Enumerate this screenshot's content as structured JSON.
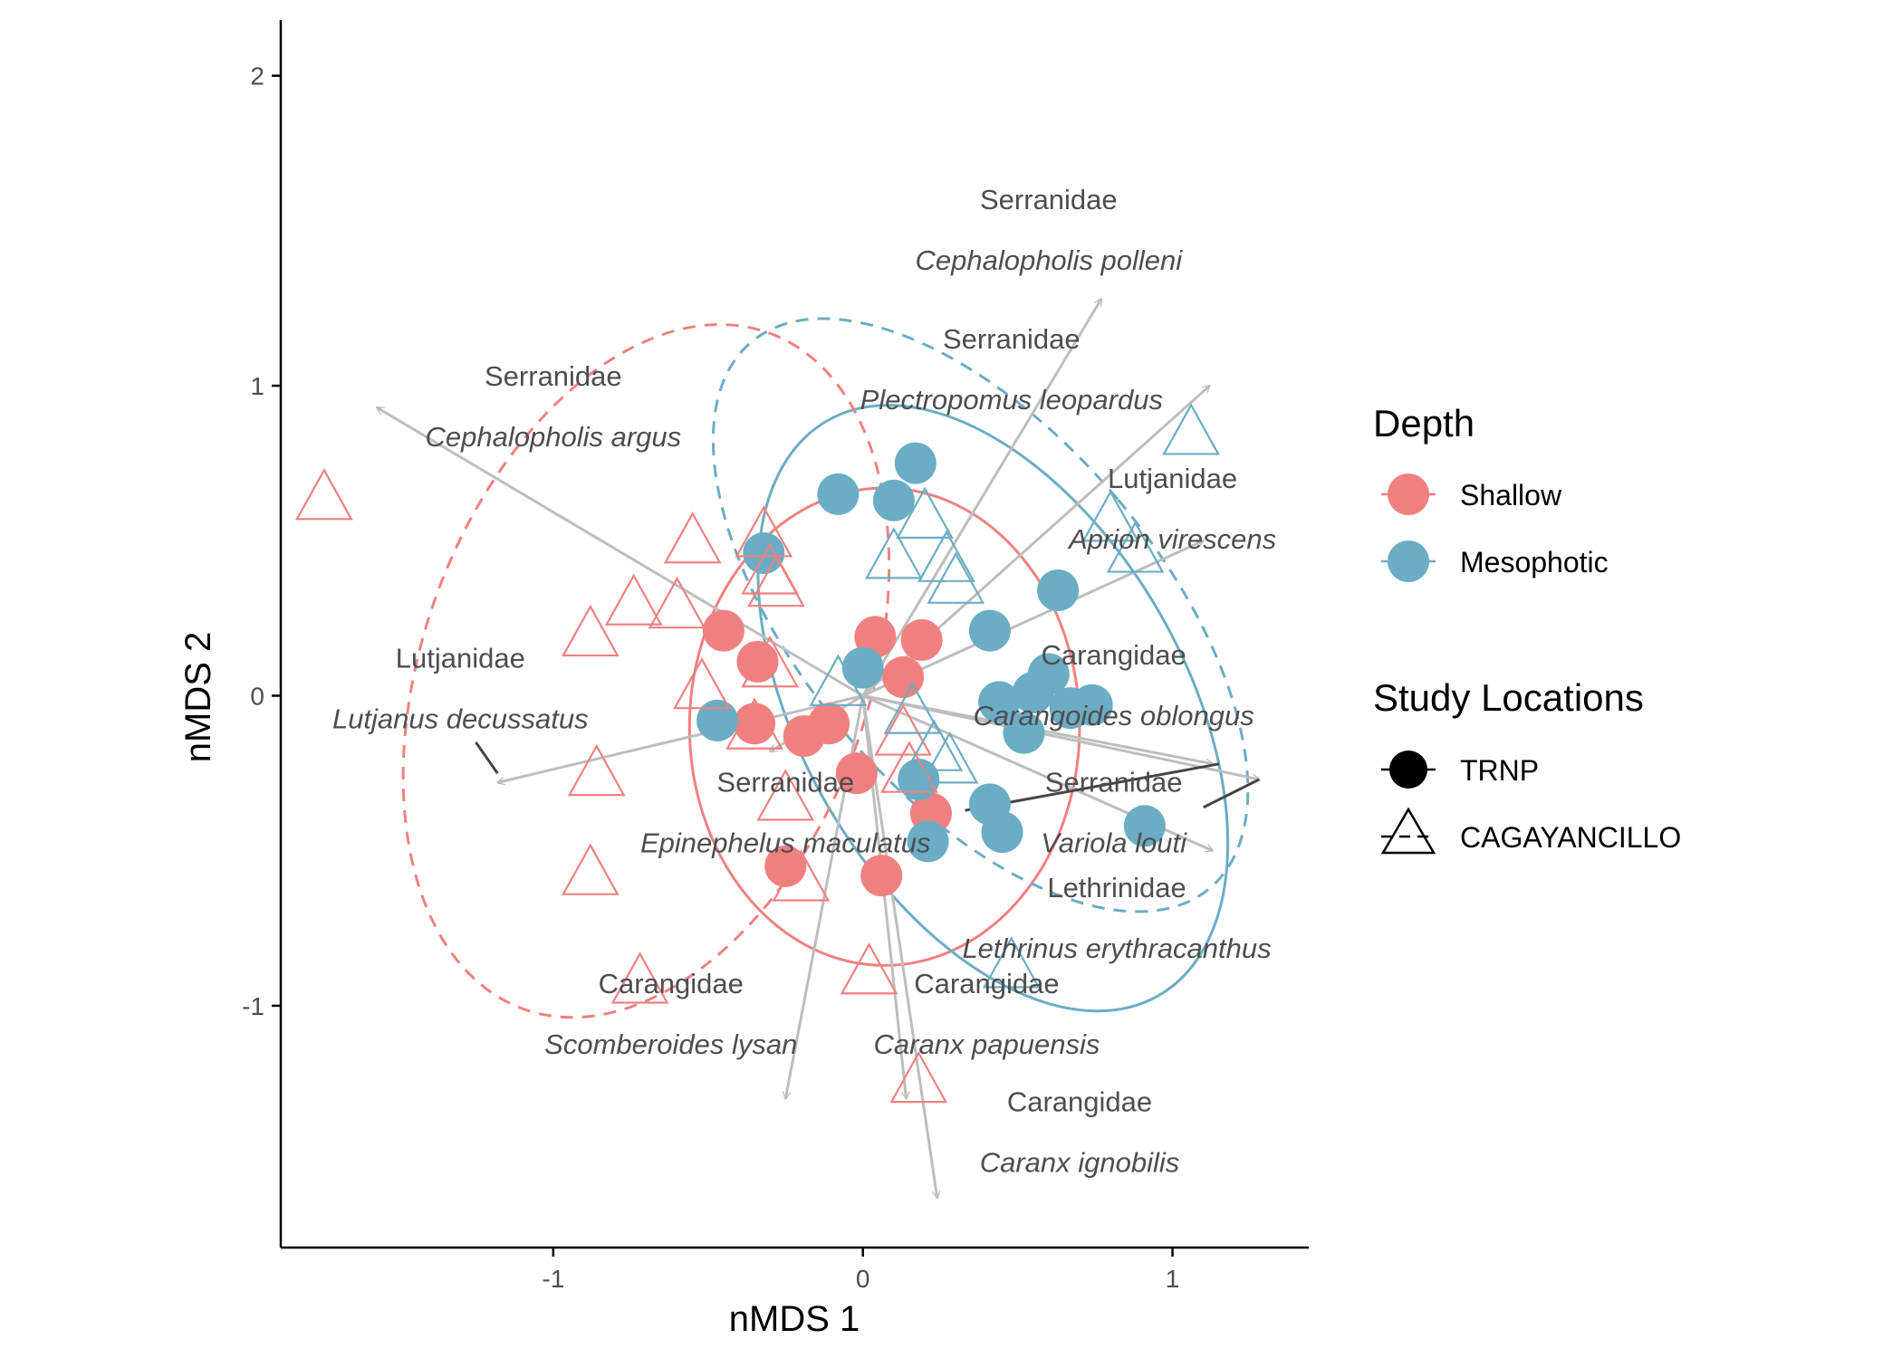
{
  "chart_data": {
    "type": "scatter",
    "xlabel": "nMDS 1",
    "ylabel": "nMDS 2",
    "xlim": [
      -1.88,
      1.44
    ],
    "ylim": [
      -1.78,
      2.18
    ],
    "x_ticks": [
      -1,
      0,
      1
    ],
    "y_ticks": [
      -1,
      0,
      1,
      2
    ],
    "grid": false,
    "colors": {
      "Shallow": "#F08080",
      "Mesophotic": "#6AADC4",
      "arrow": "#BDBDBD",
      "segment": "#444444"
    },
    "legend_depth": {
      "title": "Depth",
      "items": [
        {
          "label": "Shallow",
          "color": "#F08080"
        },
        {
          "label": "Mesophotic",
          "color": "#6AADC4"
        }
      ]
    },
    "legend_location": {
      "title": "Study Locations",
      "items": [
        {
          "label": "TRNP",
          "shape": "circle",
          "line": "solid"
        },
        {
          "label": "CAGAYANCILLO",
          "shape": "triangle",
          "line": "dashed"
        }
      ]
    },
    "points": [
      {
        "x": -0.45,
        "y": 0.21,
        "depth": "Shallow",
        "location": "TRNP"
      },
      {
        "x": -0.34,
        "y": 0.11,
        "depth": "Shallow",
        "location": "TRNP"
      },
      {
        "x": -0.35,
        "y": -0.09,
        "depth": "Shallow",
        "location": "TRNP"
      },
      {
        "x": -0.19,
        "y": -0.13,
        "depth": "Shallow",
        "location": "TRNP"
      },
      {
        "x": -0.11,
        "y": -0.09,
        "depth": "Shallow",
        "location": "TRNP"
      },
      {
        "x": -0.02,
        "y": -0.25,
        "depth": "Shallow",
        "location": "TRNP"
      },
      {
        "x": 0.04,
        "y": 0.19,
        "depth": "Shallow",
        "location": "TRNP"
      },
      {
        "x": 0.19,
        "y": 0.18,
        "depth": "Shallow",
        "location": "TRNP"
      },
      {
        "x": 0.13,
        "y": 0.06,
        "depth": "Shallow",
        "location": "TRNP"
      },
      {
        "x": 0.22,
        "y": -0.38,
        "depth": "Shallow",
        "location": "TRNP"
      },
      {
        "x": -0.25,
        "y": -0.55,
        "depth": "Shallow",
        "location": "TRNP"
      },
      {
        "x": 0.06,
        "y": -0.58,
        "depth": "Shallow",
        "location": "TRNP"
      },
      {
        "x": -0.47,
        "y": -0.08,
        "depth": "Mesophotic",
        "location": "TRNP"
      },
      {
        "x": -0.32,
        "y": 0.46,
        "depth": "Mesophotic",
        "location": "TRNP"
      },
      {
        "x": -0.08,
        "y": 0.65,
        "depth": "Mesophotic",
        "location": "TRNP"
      },
      {
        "x": 0.1,
        "y": 0.63,
        "depth": "Mesophotic",
        "location": "TRNP"
      },
      {
        "x": 0.17,
        "y": 0.75,
        "depth": "Mesophotic",
        "location": "TRNP"
      },
      {
        "x": 0.0,
        "y": 0.09,
        "depth": "Mesophotic",
        "location": "TRNP"
      },
      {
        "x": 0.41,
        "y": 0.21,
        "depth": "Mesophotic",
        "location": "TRNP"
      },
      {
        "x": 0.63,
        "y": 0.34,
        "depth": "Mesophotic",
        "location": "TRNP"
      },
      {
        "x": 0.6,
        "y": 0.07,
        "depth": "Mesophotic",
        "location": "TRNP"
      },
      {
        "x": 0.55,
        "y": 0.01,
        "depth": "Mesophotic",
        "location": "TRNP"
      },
      {
        "x": 0.67,
        "y": -0.04,
        "depth": "Mesophotic",
        "location": "TRNP"
      },
      {
        "x": 0.74,
        "y": -0.03,
        "depth": "Mesophotic",
        "location": "TRNP"
      },
      {
        "x": 0.44,
        "y": -0.02,
        "depth": "Mesophotic",
        "location": "TRNP"
      },
      {
        "x": 0.52,
        "y": -0.12,
        "depth": "Mesophotic",
        "location": "TRNP"
      },
      {
        "x": 0.18,
        "y": -0.27,
        "depth": "Mesophotic",
        "location": "TRNP"
      },
      {
        "x": 0.41,
        "y": -0.35,
        "depth": "Mesophotic",
        "location": "TRNP"
      },
      {
        "x": 0.45,
        "y": -0.44,
        "depth": "Mesophotic",
        "location": "TRNP"
      },
      {
        "x": 0.21,
        "y": -0.47,
        "depth": "Mesophotic",
        "location": "TRNP"
      },
      {
        "x": 0.91,
        "y": -0.42,
        "depth": "Mesophotic",
        "location": "TRNP"
      },
      {
        "x": -1.74,
        "y": 0.64,
        "depth": "Shallow",
        "location": "CAGAYANCILLO"
      },
      {
        "x": -0.55,
        "y": 0.5,
        "depth": "Shallow",
        "location": "CAGAYANCILLO"
      },
      {
        "x": -0.32,
        "y": 0.52,
        "depth": "Shallow",
        "location": "CAGAYANCILLO"
      },
      {
        "x": -0.3,
        "y": 0.4,
        "depth": "Shallow",
        "location": "CAGAYANCILLO"
      },
      {
        "x": -0.28,
        "y": 0.36,
        "depth": "Shallow",
        "location": "CAGAYANCILLO"
      },
      {
        "x": -0.74,
        "y": 0.3,
        "depth": "Shallow",
        "location": "CAGAYANCILLO"
      },
      {
        "x": -0.6,
        "y": 0.29,
        "depth": "Shallow",
        "location": "CAGAYANCILLO"
      },
      {
        "x": -0.88,
        "y": 0.2,
        "depth": "Shallow",
        "location": "CAGAYANCILLO"
      },
      {
        "x": -0.52,
        "y": 0.03,
        "depth": "Shallow",
        "location": "CAGAYANCILLO"
      },
      {
        "x": -0.3,
        "y": 0.1,
        "depth": "Shallow",
        "location": "CAGAYANCILLO"
      },
      {
        "x": -0.35,
        "y": -0.1,
        "depth": "Shallow",
        "location": "CAGAYANCILLO"
      },
      {
        "x": -0.86,
        "y": -0.25,
        "depth": "Shallow",
        "location": "CAGAYANCILLO"
      },
      {
        "x": -0.25,
        "y": -0.33,
        "depth": "Shallow",
        "location": "CAGAYANCILLO"
      },
      {
        "x": 0.13,
        "y": -0.12,
        "depth": "Shallow",
        "location": "CAGAYANCILLO"
      },
      {
        "x": 0.15,
        "y": -0.24,
        "depth": "Shallow",
        "location": "CAGAYANCILLO"
      },
      {
        "x": -0.88,
        "y": -0.57,
        "depth": "Shallow",
        "location": "CAGAYANCILLO"
      },
      {
        "x": -0.2,
        "y": -0.59,
        "depth": "Shallow",
        "location": "CAGAYANCILLO"
      },
      {
        "x": -0.72,
        "y": -0.92,
        "depth": "Shallow",
        "location": "CAGAYANCILLO"
      },
      {
        "x": 0.02,
        "y": -0.89,
        "depth": "Shallow",
        "location": "CAGAYANCILLO"
      },
      {
        "x": 0.18,
        "y": -1.24,
        "depth": "Shallow",
        "location": "CAGAYANCILLO"
      },
      {
        "x": 1.06,
        "y": 0.85,
        "depth": "Mesophotic",
        "location": "CAGAYANCILLO"
      },
      {
        "x": 0.8,
        "y": 0.57,
        "depth": "Mesophotic",
        "location": "CAGAYANCILLO"
      },
      {
        "x": 0.88,
        "y": 0.47,
        "depth": "Mesophotic",
        "location": "CAGAYANCILLO"
      },
      {
        "x": 0.2,
        "y": 0.58,
        "depth": "Mesophotic",
        "location": "CAGAYANCILLO"
      },
      {
        "x": 0.1,
        "y": 0.45,
        "depth": "Mesophotic",
        "location": "CAGAYANCILLO"
      },
      {
        "x": 0.27,
        "y": 0.44,
        "depth": "Mesophotic",
        "location": "CAGAYANCILLO"
      },
      {
        "x": 0.3,
        "y": 0.37,
        "depth": "Mesophotic",
        "location": "CAGAYANCILLO"
      },
      {
        "x": -0.08,
        "y": 0.04,
        "depth": "Mesophotic",
        "location": "CAGAYANCILLO"
      },
      {
        "x": 0.16,
        "y": -0.05,
        "depth": "Mesophotic",
        "location": "CAGAYANCILLO"
      },
      {
        "x": 0.23,
        "y": -0.17,
        "depth": "Mesophotic",
        "location": "CAGAYANCILLO"
      },
      {
        "x": 0.28,
        "y": -0.21,
        "depth": "Mesophotic",
        "location": "CAGAYANCILLO"
      },
      {
        "x": 0.48,
        "y": -0.87,
        "depth": "Mesophotic",
        "location": "CAGAYANCILLO"
      }
    ],
    "ellipses": [
      {
        "group": "Shallow",
        "location": "TRNP",
        "cx": 0.07,
        "cy": -0.1,
        "rx": 0.63,
        "ry": 0.77,
        "angle": 0
      },
      {
        "group": "Mesophotic",
        "location": "TRNP",
        "cx": 0.42,
        "cy": -0.04,
        "rx": 0.62,
        "ry": 1.07,
        "angle": 30
      },
      {
        "group": "Shallow",
        "location": "CAGAYANCILLO",
        "cx": -0.7,
        "cy": 0.08,
        "rx": 0.72,
        "ry": 1.16,
        "angle": -20
      },
      {
        "group": "Mesophotic",
        "location": "CAGAYANCILLO",
        "cx": 0.38,
        "cy": 0.26,
        "rx": 0.58,
        "ry": 1.15,
        "angle": 40
      }
    ],
    "vectors": [
      {
        "x": -1.57,
        "y": 0.93,
        "family": "Serranidae",
        "species": "Cephalopholis argus",
        "label_x": -1.0,
        "label_y": 1.0
      },
      {
        "x": -1.18,
        "y": -0.28,
        "family": "Lutjanidae",
        "species": "Lutjanus decussatus",
        "label_x": -1.3,
        "label_y": 0.09
      },
      {
        "x": 0.77,
        "y": 1.28,
        "family": "Serranidae",
        "species": "Cephalopholis polleni",
        "label_x": 0.6,
        "label_y": 1.57
      },
      {
        "x": 1.12,
        "y": 1.0,
        "family": "Serranidae",
        "species": "Plectropomus leopardus",
        "label_x": 0.48,
        "label_y": 1.12
      },
      {
        "x": 1.1,
        "y": 0.5,
        "family": "Lutjanidae",
        "species": "Aprion virescens",
        "label_x": 1.0,
        "label_y": 0.67
      },
      {
        "x": 1.28,
        "y": -0.27,
        "family": "Carangidae",
        "species": "Carangoides oblongus",
        "label_x": 0.81,
        "label_y": 0.1
      },
      {
        "x": 1.13,
        "y": -0.22,
        "family": "Serranidae",
        "species": "Variola louti",
        "label_x": 0.81,
        "label_y": -0.31
      },
      {
        "x": 1.13,
        "y": -0.5,
        "family": "Lethrinidae",
        "species": "Lethrinus erythracanthus",
        "label_x": 0.82,
        "label_y": -0.65
      },
      {
        "x": -0.25,
        "y": -1.3,
        "family": "Carangidae",
        "species": "Scomberoides lysan",
        "label_x": -0.62,
        "label_y": -0.96
      },
      {
        "x": 0.14,
        "y": -1.3,
        "family": "Carangidae",
        "species": "Caranx papuensis",
        "label_x": 0.4,
        "label_y": -0.96
      },
      {
        "x": 0.24,
        "y": -1.62,
        "family": "Carangidae",
        "species": "Caranx ignobilis",
        "label_x": 0.7,
        "label_y": -1.34
      },
      {
        "x": -0.3,
        "y": -0.18,
        "family": "Serranidae",
        "species": "Epinephelus maculatus",
        "label_x": -0.25,
        "label_y": -0.31
      }
    ]
  }
}
